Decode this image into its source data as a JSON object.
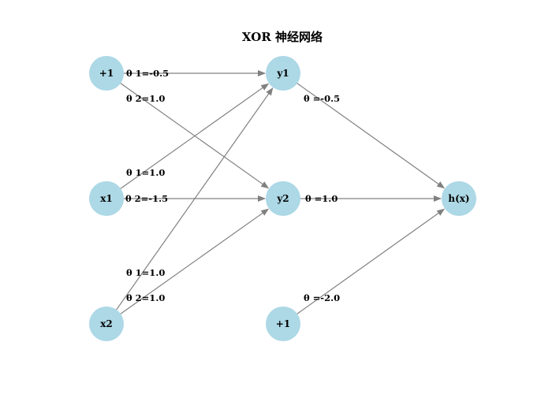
{
  "title": "XOR 神经网络",
  "colors": {
    "node_fill": "#add8e6",
    "edge_color": "#808080",
    "text_color": "#000000"
  },
  "nodes": {
    "bias_input": "+1",
    "x1": "x1",
    "x2": "x2",
    "y1": "y1",
    "y2": "y2",
    "bias_hidden": "+1",
    "output": "h(x)"
  },
  "edges": [
    {
      "from": "bias_input",
      "to": "y1",
      "label": "θ 1=-0.5"
    },
    {
      "from": "bias_input",
      "to": "y2",
      "label": "θ 2=1.0"
    },
    {
      "from": "x1",
      "to": "y1",
      "label": "θ 1=1.0"
    },
    {
      "from": "x1",
      "to": "y2",
      "label": "θ 2=-1.5"
    },
    {
      "from": "x2",
      "to": "y1",
      "label": "θ 1=1.0"
    },
    {
      "from": "x2",
      "to": "y2",
      "label": "θ 2=1.0"
    },
    {
      "from": "y1",
      "to": "output",
      "label": "θ =-0.5"
    },
    {
      "from": "y2",
      "to": "output",
      "label": "θ =1.0"
    },
    {
      "from": "bias_hidden",
      "to": "output",
      "label": "θ =-2.0"
    }
  ]
}
